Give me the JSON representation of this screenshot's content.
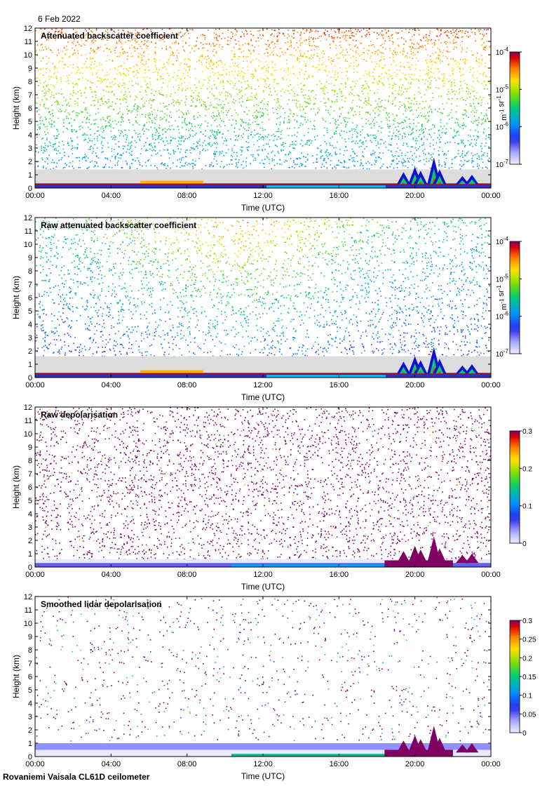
{
  "date": "6 Feb 2022",
  "footer": "Rovaniemi Vaisala CL61D ceilometer",
  "chart_data": [
    {
      "type": "heatmap",
      "title": "Attenuated backscatter coefficient",
      "xlabel": "Time (UTC)",
      "ylabel": "Height (km)",
      "x_ticks": [
        "00:00",
        "04:00",
        "08:00",
        "12:00",
        "16:00",
        "20:00",
        "00:00"
      ],
      "y_ticks": [
        "0",
        "1",
        "2",
        "3",
        "4",
        "5",
        "6",
        "7",
        "8",
        "9",
        "10",
        "11",
        "12"
      ],
      "ylim": [
        0,
        12
      ],
      "colorbar": {
        "scale": "log",
        "ticks": [
          "10-7",
          "10-6",
          "10-5",
          "10-4"
        ],
        "tick_values": [
          1e-07,
          1e-06,
          1e-05,
          0.0001
        ],
        "label": "m-1 sr-1",
        "colormap": "rainbow"
      },
      "pattern": "sparse-backscatter"
    },
    {
      "type": "heatmap",
      "title": "Raw attenuated backscatter coefficient",
      "xlabel": "Time (UTC)",
      "ylabel": "Height (km)",
      "x_ticks": [
        "00:00",
        "04:00",
        "08:00",
        "12:00",
        "16:00",
        "20:00",
        "00:00"
      ],
      "y_ticks": [
        "0",
        "1",
        "2",
        "3",
        "4",
        "5",
        "6",
        "7",
        "8",
        "9",
        "10",
        "11",
        "12"
      ],
      "ylim": [
        0,
        12
      ],
      "colorbar": {
        "scale": "log",
        "ticks": [
          "10-7",
          "10-6",
          "10-5",
          "10-4"
        ],
        "tick_values": [
          1e-07,
          1e-06,
          1e-05,
          0.0001
        ],
        "label": "m-1 sr-1",
        "colormap": "rainbow"
      },
      "pattern": "raw-backscatter"
    },
    {
      "type": "heatmap",
      "title": "Raw depolarisation",
      "xlabel": "Time (UTC)",
      "ylabel": "Height (km)",
      "x_ticks": [
        "00:00",
        "04:00",
        "08:00",
        "12:00",
        "16:00",
        "20:00",
        "00:00"
      ],
      "y_ticks": [
        "0",
        "1",
        "2",
        "3",
        "4",
        "5",
        "6",
        "7",
        "8",
        "9",
        "10",
        "11",
        "12"
      ],
      "ylim": [
        0,
        12
      ],
      "colorbar": {
        "scale": "linear",
        "ticks": [
          "0",
          "0.1",
          "0.2",
          "0.3"
        ],
        "tick_values": [
          0,
          0.1,
          0.2,
          0.3
        ],
        "label": "",
        "colormap": "rainbow"
      },
      "pattern": "raw-depol"
    },
    {
      "type": "heatmap",
      "title": "Smoothed lidar depolarisation",
      "xlabel": "Time (UTC)",
      "ylabel": "Height (km)",
      "x_ticks": [
        "00:00",
        "04:00",
        "08:00",
        "12:00",
        "16:00",
        "20:00",
        "00:00"
      ],
      "y_ticks": [
        "0",
        "1",
        "2",
        "3",
        "4",
        "5",
        "6",
        "7",
        "8",
        "9",
        "10",
        "11",
        "12"
      ],
      "ylim": [
        0,
        12
      ],
      "colorbar": {
        "scale": "linear",
        "ticks": [
          "0",
          "0.05",
          "0.1",
          "0.15",
          "0.2",
          "0.25",
          "0.3"
        ],
        "tick_values": [
          0,
          0.05,
          0.1,
          0.15,
          0.2,
          0.25,
          0.3
        ],
        "label": "",
        "colormap": "rainbow"
      },
      "pattern": "smooth-depol"
    }
  ]
}
